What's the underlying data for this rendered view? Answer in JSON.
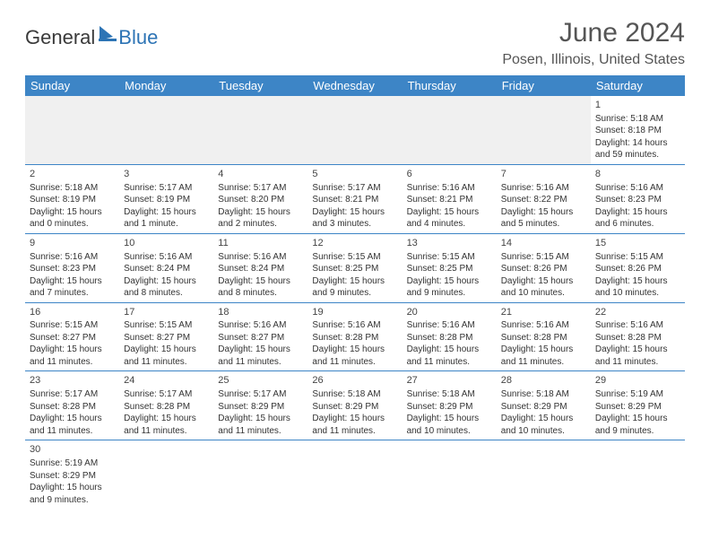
{
  "logo": {
    "general": "General",
    "blue": "Blue"
  },
  "title": "June 2024",
  "location": "Posen, Illinois, United States",
  "day_headers": [
    "Sunday",
    "Monday",
    "Tuesday",
    "Wednesday",
    "Thursday",
    "Friday",
    "Saturday"
  ],
  "colors": {
    "header_bg": "#3d85c6",
    "header_text": "#ffffff",
    "border": "#3d85c6",
    "logo_blue": "#2d74b5",
    "text_gray": "#555555"
  },
  "weeks": [
    [
      null,
      null,
      null,
      null,
      null,
      null,
      {
        "n": "1",
        "sunrise": "Sunrise: 5:18 AM",
        "sunset": "Sunset: 8:18 PM",
        "daylight": "Daylight: 14 hours and 59 minutes."
      }
    ],
    [
      {
        "n": "2",
        "sunrise": "Sunrise: 5:18 AM",
        "sunset": "Sunset: 8:19 PM",
        "daylight": "Daylight: 15 hours and 0 minutes."
      },
      {
        "n": "3",
        "sunrise": "Sunrise: 5:17 AM",
        "sunset": "Sunset: 8:19 PM",
        "daylight": "Daylight: 15 hours and 1 minute."
      },
      {
        "n": "4",
        "sunrise": "Sunrise: 5:17 AM",
        "sunset": "Sunset: 8:20 PM",
        "daylight": "Daylight: 15 hours and 2 minutes."
      },
      {
        "n": "5",
        "sunrise": "Sunrise: 5:17 AM",
        "sunset": "Sunset: 8:21 PM",
        "daylight": "Daylight: 15 hours and 3 minutes."
      },
      {
        "n": "6",
        "sunrise": "Sunrise: 5:16 AM",
        "sunset": "Sunset: 8:21 PM",
        "daylight": "Daylight: 15 hours and 4 minutes."
      },
      {
        "n": "7",
        "sunrise": "Sunrise: 5:16 AM",
        "sunset": "Sunset: 8:22 PM",
        "daylight": "Daylight: 15 hours and 5 minutes."
      },
      {
        "n": "8",
        "sunrise": "Sunrise: 5:16 AM",
        "sunset": "Sunset: 8:23 PM",
        "daylight": "Daylight: 15 hours and 6 minutes."
      }
    ],
    [
      {
        "n": "9",
        "sunrise": "Sunrise: 5:16 AM",
        "sunset": "Sunset: 8:23 PM",
        "daylight": "Daylight: 15 hours and 7 minutes."
      },
      {
        "n": "10",
        "sunrise": "Sunrise: 5:16 AM",
        "sunset": "Sunset: 8:24 PM",
        "daylight": "Daylight: 15 hours and 8 minutes."
      },
      {
        "n": "11",
        "sunrise": "Sunrise: 5:16 AM",
        "sunset": "Sunset: 8:24 PM",
        "daylight": "Daylight: 15 hours and 8 minutes."
      },
      {
        "n": "12",
        "sunrise": "Sunrise: 5:15 AM",
        "sunset": "Sunset: 8:25 PM",
        "daylight": "Daylight: 15 hours and 9 minutes."
      },
      {
        "n": "13",
        "sunrise": "Sunrise: 5:15 AM",
        "sunset": "Sunset: 8:25 PM",
        "daylight": "Daylight: 15 hours and 9 minutes."
      },
      {
        "n": "14",
        "sunrise": "Sunrise: 5:15 AM",
        "sunset": "Sunset: 8:26 PM",
        "daylight": "Daylight: 15 hours and 10 minutes."
      },
      {
        "n": "15",
        "sunrise": "Sunrise: 5:15 AM",
        "sunset": "Sunset: 8:26 PM",
        "daylight": "Daylight: 15 hours and 10 minutes."
      }
    ],
    [
      {
        "n": "16",
        "sunrise": "Sunrise: 5:15 AM",
        "sunset": "Sunset: 8:27 PM",
        "daylight": "Daylight: 15 hours and 11 minutes."
      },
      {
        "n": "17",
        "sunrise": "Sunrise: 5:15 AM",
        "sunset": "Sunset: 8:27 PM",
        "daylight": "Daylight: 15 hours and 11 minutes."
      },
      {
        "n": "18",
        "sunrise": "Sunrise: 5:16 AM",
        "sunset": "Sunset: 8:27 PM",
        "daylight": "Daylight: 15 hours and 11 minutes."
      },
      {
        "n": "19",
        "sunrise": "Sunrise: 5:16 AM",
        "sunset": "Sunset: 8:28 PM",
        "daylight": "Daylight: 15 hours and 11 minutes."
      },
      {
        "n": "20",
        "sunrise": "Sunrise: 5:16 AM",
        "sunset": "Sunset: 8:28 PM",
        "daylight": "Daylight: 15 hours and 11 minutes."
      },
      {
        "n": "21",
        "sunrise": "Sunrise: 5:16 AM",
        "sunset": "Sunset: 8:28 PM",
        "daylight": "Daylight: 15 hours and 11 minutes."
      },
      {
        "n": "22",
        "sunrise": "Sunrise: 5:16 AM",
        "sunset": "Sunset: 8:28 PM",
        "daylight": "Daylight: 15 hours and 11 minutes."
      }
    ],
    [
      {
        "n": "23",
        "sunrise": "Sunrise: 5:17 AM",
        "sunset": "Sunset: 8:28 PM",
        "daylight": "Daylight: 15 hours and 11 minutes."
      },
      {
        "n": "24",
        "sunrise": "Sunrise: 5:17 AM",
        "sunset": "Sunset: 8:28 PM",
        "daylight": "Daylight: 15 hours and 11 minutes."
      },
      {
        "n": "25",
        "sunrise": "Sunrise: 5:17 AM",
        "sunset": "Sunset: 8:29 PM",
        "daylight": "Daylight: 15 hours and 11 minutes."
      },
      {
        "n": "26",
        "sunrise": "Sunrise: 5:18 AM",
        "sunset": "Sunset: 8:29 PM",
        "daylight": "Daylight: 15 hours and 11 minutes."
      },
      {
        "n": "27",
        "sunrise": "Sunrise: 5:18 AM",
        "sunset": "Sunset: 8:29 PM",
        "daylight": "Daylight: 15 hours and 10 minutes."
      },
      {
        "n": "28",
        "sunrise": "Sunrise: 5:18 AM",
        "sunset": "Sunset: 8:29 PM",
        "daylight": "Daylight: 15 hours and 10 minutes."
      },
      {
        "n": "29",
        "sunrise": "Sunrise: 5:19 AM",
        "sunset": "Sunset: 8:29 PM",
        "daylight": "Daylight: 15 hours and 9 minutes."
      }
    ],
    [
      {
        "n": "30",
        "sunrise": "Sunrise: 5:19 AM",
        "sunset": "Sunset: 8:29 PM",
        "daylight": "Daylight: 15 hours and 9 minutes."
      },
      null,
      null,
      null,
      null,
      null,
      null
    ]
  ]
}
